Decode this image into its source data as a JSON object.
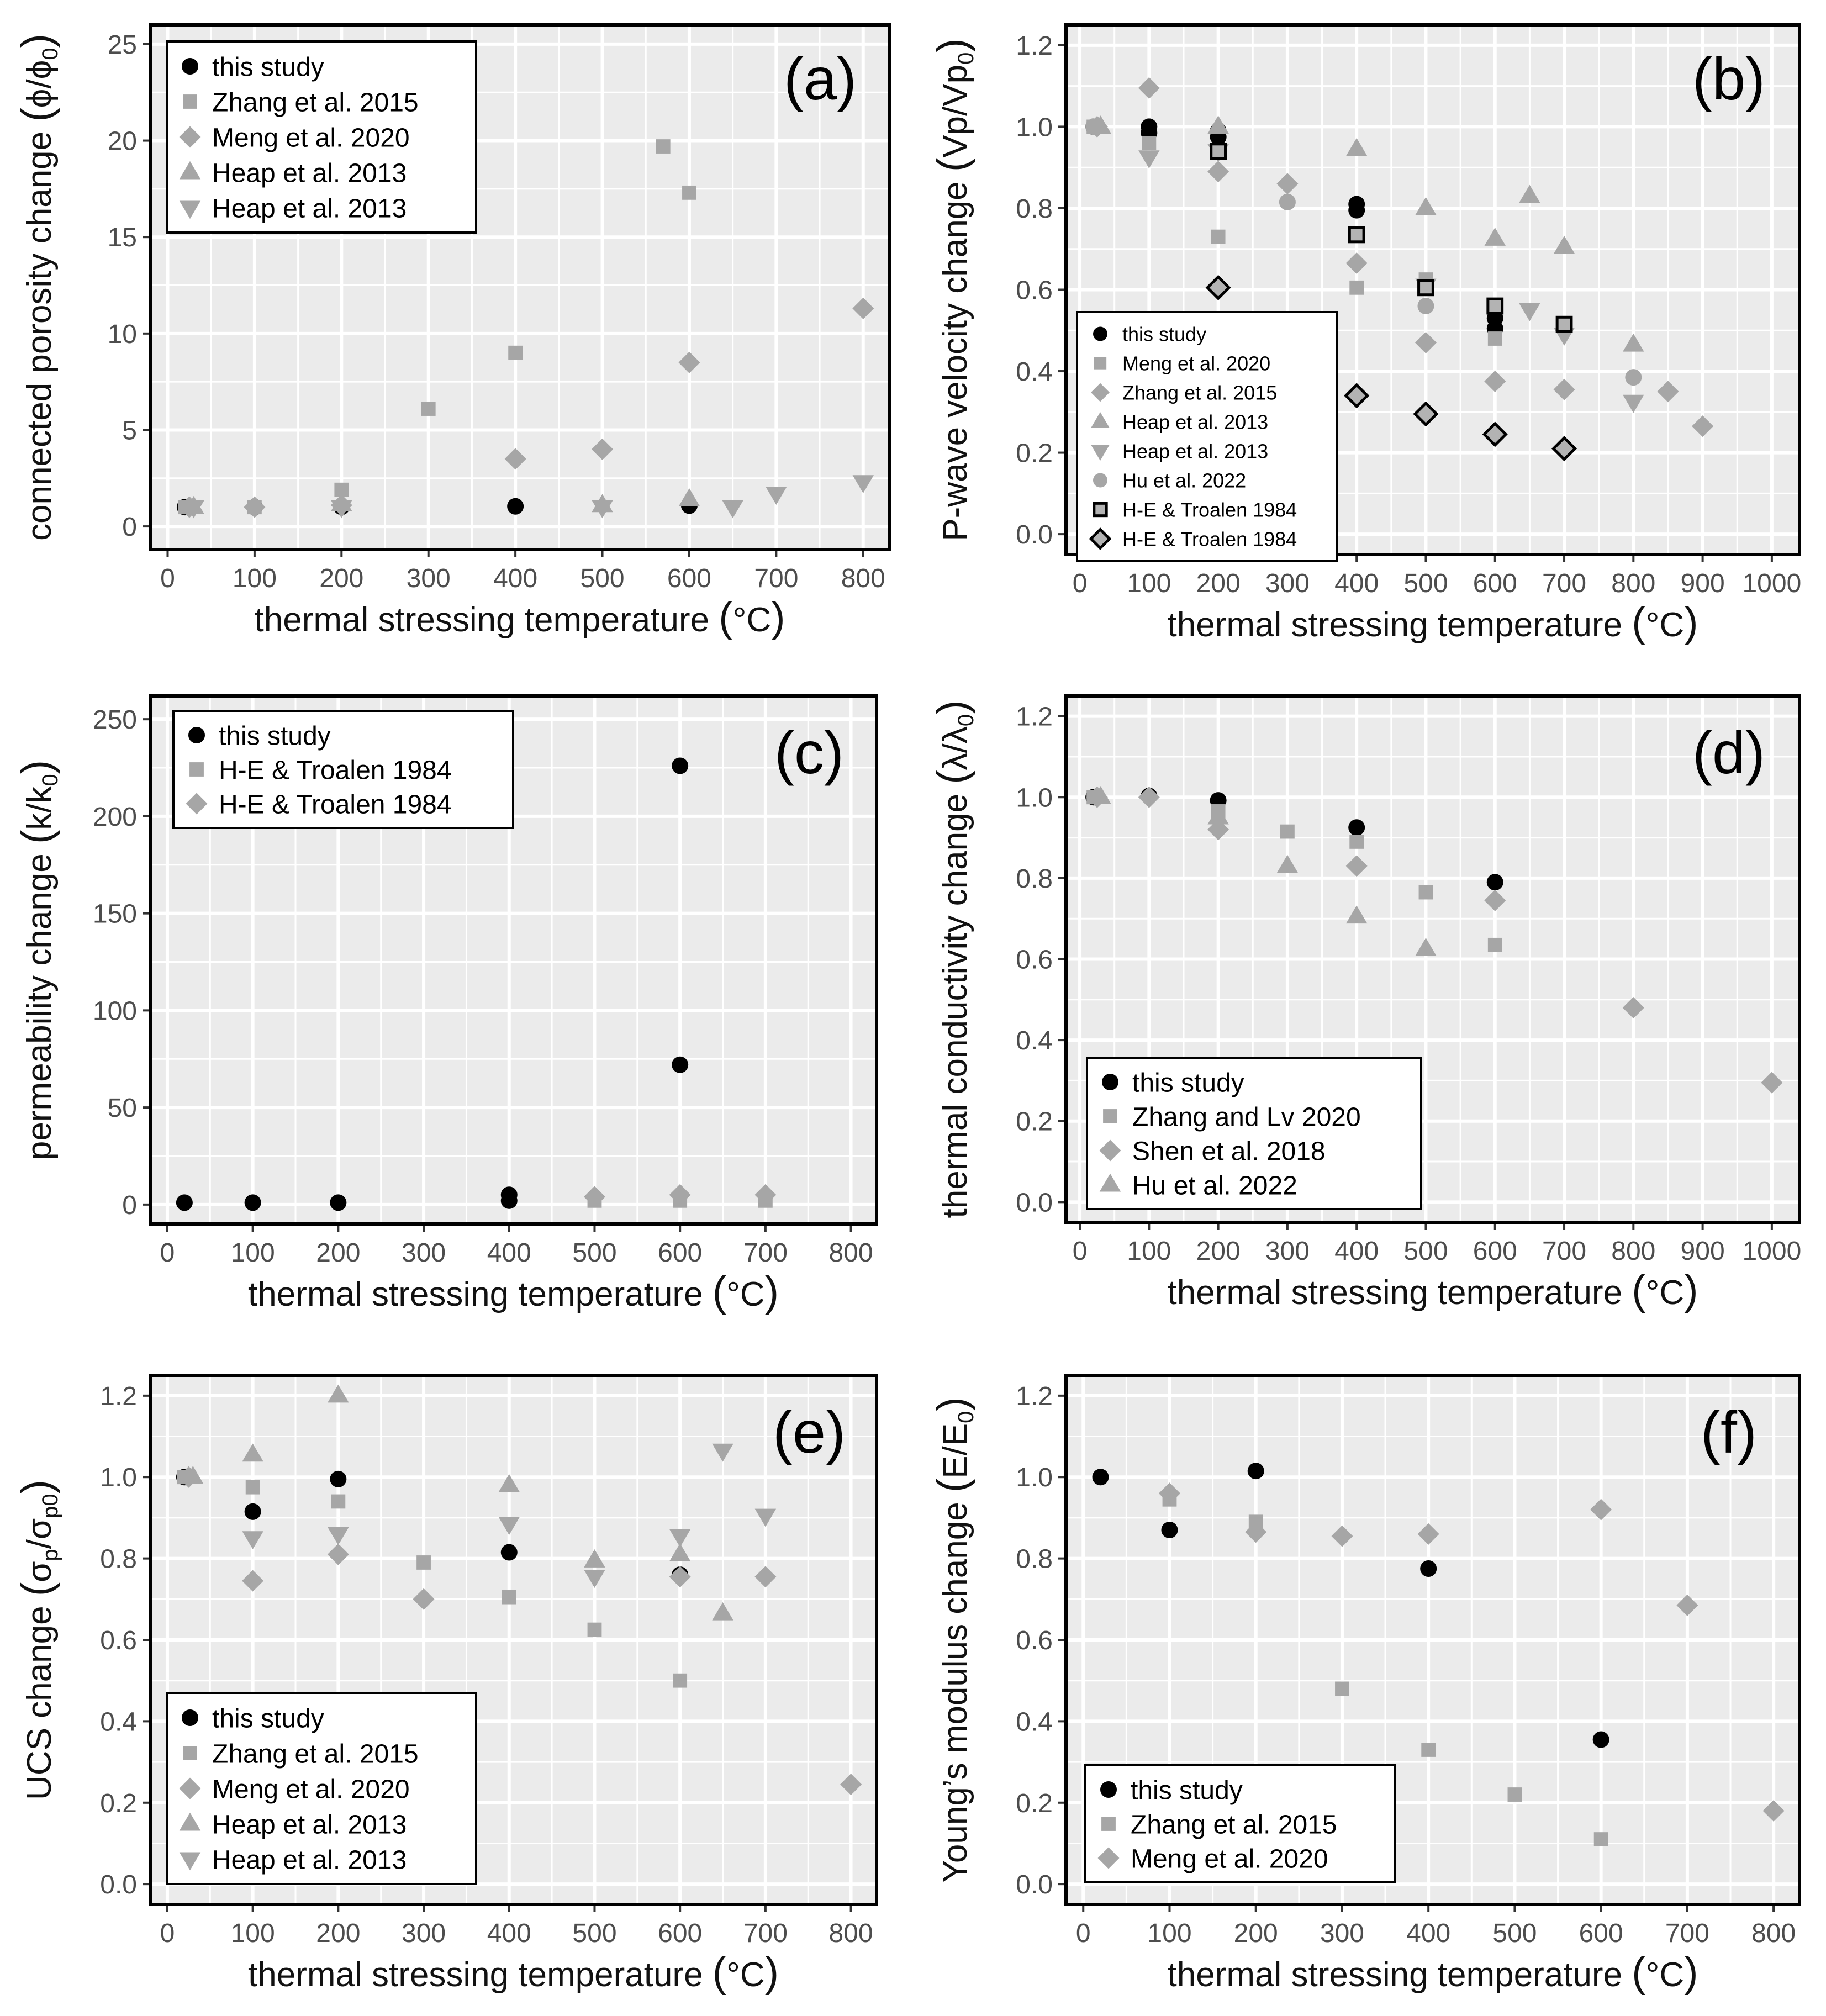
{
  "colors": {
    "panel_bg": "#ebebeb",
    "grid": "#ffffff",
    "this_study": "#000000",
    "literature": "#a6a6a6",
    "hollow_fill": "#b3b3b3",
    "hollow_stroke": "#000000"
  },
  "chart_data": [
    {
      "id": "a",
      "type": "scatter",
      "panel_label": "(a)",
      "title": "",
      "xlabel": "thermal stressing temperature (°C)",
      "ylabel": "connected porosity change (ϕ/ϕ₀)",
      "xlim": [
        -20,
        830
      ],
      "ylim": [
        -1.2,
        26
      ],
      "xticks": [
        0,
        100,
        200,
        300,
        400,
        500,
        600,
        700,
        800
      ],
      "yticks": [
        0,
        5,
        10,
        15,
        20,
        25
      ],
      "grid": true,
      "legend_position": "top-left",
      "series": [
        {
          "name": "this study",
          "marker": "circle",
          "color": "#000000",
          "points": [
            [
              20,
              1.0
            ],
            [
              100,
              1.0
            ],
            [
              200,
              1.02
            ],
            [
              400,
              1.04
            ],
            [
              600,
              1.08
            ]
          ]
        },
        {
          "name": "Zhang et al. 2015",
          "marker": "square",
          "color": "#a6a6a6",
          "points": [
            [
              20,
              1.0
            ],
            [
              100,
              1.0
            ],
            [
              200,
              1.9
            ],
            [
              300,
              6.1
            ],
            [
              400,
              9.0
            ],
            [
              570,
              19.7
            ],
            [
              600,
              17.3
            ]
          ]
        },
        {
          "name": "Meng et al. 2020",
          "marker": "diamond",
          "color": "#a6a6a6",
          "points": [
            [
              25,
              1.0
            ],
            [
              100,
              1.0
            ],
            [
              200,
              1.1
            ],
            [
              400,
              3.5
            ],
            [
              500,
              4.0
            ],
            [
              600,
              8.5
            ],
            [
              800,
              11.3
            ]
          ]
        },
        {
          "name": "Heap et al. 2013",
          "marker": "triangle-up",
          "color": "#a6a6a6",
          "points": [
            [
              30,
              1.0
            ],
            [
              200,
              1.15
            ],
            [
              500,
              1.1
            ],
            [
              600,
              1.4
            ]
          ]
        },
        {
          "name": "Heap et al. 2013",
          "marker": "triangle-down",
          "color": "#a6a6a6",
          "points": [
            [
              30,
              1.0
            ],
            [
              200,
              1.0
            ],
            [
              500,
              1.0
            ],
            [
              650,
              1.0
            ],
            [
              700,
              1.7
            ],
            [
              800,
              2.3
            ]
          ]
        }
      ]
    },
    {
      "id": "b",
      "type": "scatter",
      "panel_label": "(b)",
      "title": "",
      "xlabel": "thermal stressing temperature (°C)",
      "ylabel": "P-wave velocity change (Vp/Vp₀)",
      "xlim": [
        -20,
        1040
      ],
      "ylim": [
        -0.05,
        1.25
      ],
      "xticks": [
        0,
        100,
        200,
        300,
        400,
        500,
        600,
        700,
        800,
        900,
        1000
      ],
      "yticks": [
        0.0,
        0.2,
        0.4,
        0.6,
        0.8,
        1.0,
        1.2
      ],
      "grid": true,
      "legend_position": "bottom-left",
      "series": [
        {
          "name": "this study",
          "marker": "circle",
          "color": "#000000",
          "points": [
            [
              20,
              1.0
            ],
            [
              100,
              1.0
            ],
            [
              100,
              0.985
            ],
            [
              200,
              0.99
            ],
            [
              200,
              0.975
            ],
            [
              400,
              0.81
            ],
            [
              400,
              0.795
            ],
            [
              600,
              0.53
            ],
            [
              600,
              0.505
            ]
          ]
        },
        {
          "name": "Meng et al. 2020",
          "marker": "square",
          "color": "#a6a6a6",
          "points": [
            [
              20,
              1.0
            ],
            [
              100,
              0.96
            ],
            [
              200,
              0.73
            ],
            [
              400,
              0.605
            ],
            [
              500,
              0.625
            ],
            [
              600,
              0.48
            ]
          ]
        },
        {
          "name": "Zhang et al. 2015",
          "marker": "diamond",
          "color": "#a6a6a6",
          "points": [
            [
              25,
              1.0
            ],
            [
              100,
              1.095
            ],
            [
              200,
              0.89
            ],
            [
              300,
              0.86
            ],
            [
              400,
              0.665
            ],
            [
              500,
              0.47
            ],
            [
              600,
              0.375
            ],
            [
              700,
              0.355
            ],
            [
              850,
              0.35
            ],
            [
              900,
              0.265
            ]
          ]
        },
        {
          "name": "Heap et al. 2013",
          "marker": "triangle-up",
          "color": "#a6a6a6",
          "points": [
            [
              30,
              1.0
            ],
            [
              200,
              1.0
            ],
            [
              400,
              0.945
            ],
            [
              500,
              0.8
            ],
            [
              600,
              0.725
            ],
            [
              650,
              0.83
            ],
            [
              700,
              0.705
            ],
            [
              800,
              0.465
            ]
          ]
        },
        {
          "name": "Heap et al. 2013",
          "marker": "triangle-down",
          "color": "#a6a6a6",
          "points": [
            [
              100,
              0.925
            ],
            [
              200,
              0.94
            ],
            [
              500,
              0.61
            ],
            [
              650,
              0.55
            ],
            [
              700,
              0.49
            ],
            [
              800,
              0.325
            ]
          ]
        },
        {
          "name": "Hu et al. 2022",
          "marker": "circle",
          "color": "#a6a6a6",
          "points": [
            [
              20,
              1.0
            ],
            [
              300,
              0.815
            ],
            [
              500,
              0.56
            ],
            [
              800,
              0.385
            ]
          ]
        },
        {
          "name": "H-E & Troalen 1984",
          "marker": "square-hollow",
          "color": "#000000",
          "points": [
            [
              200,
              0.94
            ],
            [
              400,
              0.735
            ],
            [
              500,
              0.605
            ],
            [
              600,
              0.56
            ],
            [
              700,
              0.515
            ]
          ]
        },
        {
          "name": "H-E & Troalen 1984",
          "marker": "diamond-hollow",
          "color": "#000000",
          "points": [
            [
              200,
              0.605
            ],
            [
              400,
              0.34
            ],
            [
              500,
              0.295
            ],
            [
              600,
              0.245
            ],
            [
              700,
              0.21
            ]
          ]
        }
      ]
    },
    {
      "id": "c",
      "type": "scatter",
      "panel_label": "(c)",
      "title": "",
      "xlabel": "thermal stressing temperature (°C)",
      "ylabel": "permeability change (k/k₀)",
      "xlim": [
        -20,
        830
      ],
      "ylim": [
        -10,
        262
      ],
      "xticks": [
        0,
        100,
        200,
        300,
        400,
        500,
        600,
        700,
        800
      ],
      "yticks": [
        0,
        50,
        100,
        150,
        200,
        250
      ],
      "grid": true,
      "legend_position": "top-left",
      "series": [
        {
          "name": "this study",
          "marker": "circle",
          "color": "#000000",
          "points": [
            [
              20,
              1
            ],
            [
              100,
              1
            ],
            [
              200,
              1
            ],
            [
              400,
              2
            ],
            [
              400,
              5
            ],
            [
              600,
              72
            ],
            [
              600,
              226
            ]
          ]
        },
        {
          "name": "H-E & Troalen 1984",
          "marker": "square",
          "color": "#a6a6a6",
          "points": [
            [
              500,
              2
            ],
            [
              600,
              2
            ],
            [
              700,
              2
            ]
          ]
        },
        {
          "name": "H-E & Troalen 1984",
          "marker": "diamond",
          "color": "#a6a6a6",
          "points": [
            [
              500,
              4
            ],
            [
              600,
              5
            ],
            [
              700,
              5
            ]
          ]
        }
      ]
    },
    {
      "id": "d",
      "type": "scatter",
      "panel_label": "(d)",
      "title": "",
      "xlabel": "thermal stressing temperature (°C)",
      "ylabel": "thermal conductivity change (λ/λ₀)",
      "xlim": [
        -20,
        1040
      ],
      "ylim": [
        -0.05,
        1.25
      ],
      "xticks": [
        0,
        100,
        200,
        300,
        400,
        500,
        600,
        700,
        800,
        900,
        1000
      ],
      "yticks": [
        0.0,
        0.2,
        0.4,
        0.6,
        0.8,
        1.0,
        1.2
      ],
      "grid": true,
      "legend_position": "bottom-left",
      "series": [
        {
          "name": "this study",
          "marker": "circle",
          "color": "#000000",
          "points": [
            [
              20,
              1.0
            ],
            [
              100,
              1.003
            ],
            [
              200,
              0.992
            ],
            [
              400,
              0.925
            ],
            [
              600,
              0.79
            ]
          ]
        },
        {
          "name": "Zhang and Lv 2020",
          "marker": "square",
          "color": "#a6a6a6",
          "points": [
            [
              20,
              1.0
            ],
            [
              200,
              0.965
            ],
            [
              300,
              0.915
            ],
            [
              400,
              0.89
            ],
            [
              500,
              0.765
            ],
            [
              600,
              0.635
            ]
          ]
        },
        {
          "name": "Shen et al. 2018",
          "marker": "diamond",
          "color": "#a6a6a6",
          "points": [
            [
              25,
              1.0
            ],
            [
              100,
              1.0
            ],
            [
              200,
              0.92
            ],
            [
              400,
              0.83
            ],
            [
              600,
              0.745
            ],
            [
              800,
              0.48
            ],
            [
              1000,
              0.295
            ]
          ]
        },
        {
          "name": "Hu et al. 2022",
          "marker": "triangle-up",
          "color": "#a6a6a6",
          "points": [
            [
              30,
              1.0
            ],
            [
              200,
              0.95
            ],
            [
              300,
              0.83
            ],
            [
              400,
              0.705
            ],
            [
              500,
              0.625
            ]
          ]
        }
      ]
    },
    {
      "id": "e",
      "type": "scatter",
      "panel_label": "(e)",
      "title": "",
      "xlabel": "thermal stressing temperature (°C)",
      "ylabel": "UCS change (σp/σp0)",
      "xlim": [
        -20,
        830
      ],
      "ylim": [
        -0.05,
        1.25
      ],
      "xticks": [
        0,
        100,
        200,
        300,
        400,
        500,
        600,
        700,
        800
      ],
      "yticks": [
        0.0,
        0.2,
        0.4,
        0.6,
        0.8,
        1.0,
        1.2
      ],
      "grid": true,
      "legend_position": "bottom-left",
      "series": [
        {
          "name": "this study",
          "marker": "circle",
          "color": "#000000",
          "points": [
            [
              20,
              1.0
            ],
            [
              100,
              0.915
            ],
            [
              200,
              0.995
            ],
            [
              400,
              0.815
            ],
            [
              600,
              0.76
            ]
          ]
        },
        {
          "name": "Zhang et al. 2015",
          "marker": "square",
          "color": "#a6a6a6",
          "points": [
            [
              20,
              1.0
            ],
            [
              100,
              0.975
            ],
            [
              200,
              0.94
            ],
            [
              300,
              0.79
            ],
            [
              400,
              0.705
            ],
            [
              500,
              0.625
            ],
            [
              600,
              0.5
            ]
          ]
        },
        {
          "name": "Meng et al. 2020",
          "marker": "diamond",
          "color": "#a6a6a6",
          "points": [
            [
              25,
              1.0
            ],
            [
              100,
              0.745
            ],
            [
              200,
              0.81
            ],
            [
              300,
              0.7
            ],
            [
              600,
              0.755
            ],
            [
              700,
              0.755
            ],
            [
              800,
              0.245
            ]
          ]
        },
        {
          "name": "Heap et al. 2013",
          "marker": "triangle-up",
          "color": "#a6a6a6",
          "points": [
            [
              30,
              1.0
            ],
            [
              100,
              1.055
            ],
            [
              200,
              1.2
            ],
            [
              400,
              0.98
            ],
            [
              500,
              0.795
            ],
            [
              600,
              0.81
            ],
            [
              650,
              0.665
            ]
          ]
        },
        {
          "name": "Heap et al. 2013",
          "marker": "triangle-down",
          "color": "#a6a6a6",
          "points": [
            [
              100,
              0.85
            ],
            [
              200,
              0.86
            ],
            [
              400,
              0.885
            ],
            [
              500,
              0.755
            ],
            [
              600,
              0.855
            ],
            [
              650,
              1.065
            ],
            [
              700,
              0.905
            ]
          ]
        }
      ]
    },
    {
      "id": "f",
      "type": "scatter",
      "panel_label": "(f)",
      "title": "",
      "xlabel": "thermal stressing temperature (°C)",
      "ylabel": "Young's modulus change (E/E₀)",
      "xlim": [
        -20,
        830
      ],
      "ylim": [
        -0.05,
        1.25
      ],
      "xticks": [
        0,
        100,
        200,
        300,
        400,
        500,
        600,
        700,
        800
      ],
      "yticks": [
        0.0,
        0.2,
        0.4,
        0.6,
        0.8,
        1.0,
        1.2
      ],
      "grid": true,
      "legend_position": "bottom-left",
      "series": [
        {
          "name": "this study",
          "marker": "circle",
          "color": "#000000",
          "points": [
            [
              20,
              1.0
            ],
            [
              100,
              0.87
            ],
            [
              200,
              1.015
            ],
            [
              400,
              0.775
            ],
            [
              600,
              0.355
            ]
          ]
        },
        {
          "name": "Zhang et al. 2015",
          "marker": "square",
          "color": "#a6a6a6",
          "points": [
            [
              100,
              0.945
            ],
            [
              200,
              0.89
            ],
            [
              300,
              0.48
            ],
            [
              400,
              0.33
            ],
            [
              500,
              0.22
            ],
            [
              600,
              0.11
            ]
          ]
        },
        {
          "name": "Meng et al. 2020",
          "marker": "diamond",
          "color": "#a6a6a6",
          "points": [
            [
              100,
              0.96
            ],
            [
              200,
              0.865
            ],
            [
              300,
              0.855
            ],
            [
              400,
              0.86
            ],
            [
              600,
              0.92
            ],
            [
              700,
              0.685
            ],
            [
              800,
              0.18
            ]
          ]
        }
      ]
    }
  ]
}
